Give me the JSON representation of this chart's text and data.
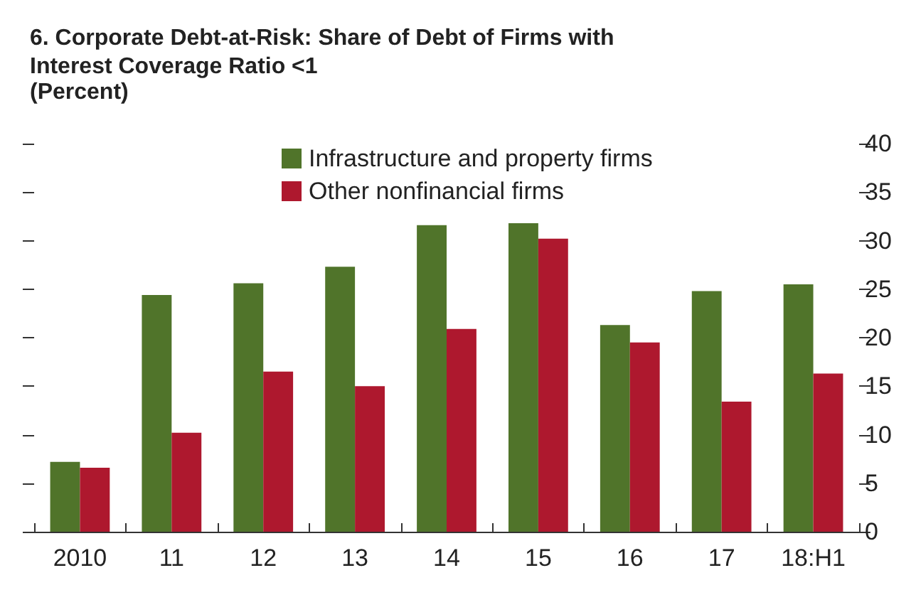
{
  "chart_data": {
    "type": "bar",
    "title": "6. Corporate Debt-at-Risk: Share of Debt of Firms with Interest Coverage Ratio <1",
    "subtitle": "(Percent)",
    "categories": [
      "2010",
      "11",
      "12",
      "13",
      "14",
      "15",
      "16",
      "17",
      "18:H1"
    ],
    "series": [
      {
        "name": "Infrastructure and property firms",
        "color": "#50742a",
        "values": [
          7.2,
          24.4,
          25.6,
          27.3,
          31.6,
          31.8,
          21.3,
          24.8,
          25.5
        ]
      },
      {
        "name": "Other nonfinancial firms",
        "color": "#ae182e",
        "values": [
          6.6,
          10.2,
          16.5,
          15.0,
          20.9,
          30.2,
          19.5,
          13.4,
          16.3
        ]
      }
    ],
    "ylim": [
      0,
      40
    ],
    "yticks": [
      0,
      5,
      10,
      15,
      20,
      25,
      30,
      35,
      40
    ],
    "grid": false,
    "legend": "top"
  }
}
